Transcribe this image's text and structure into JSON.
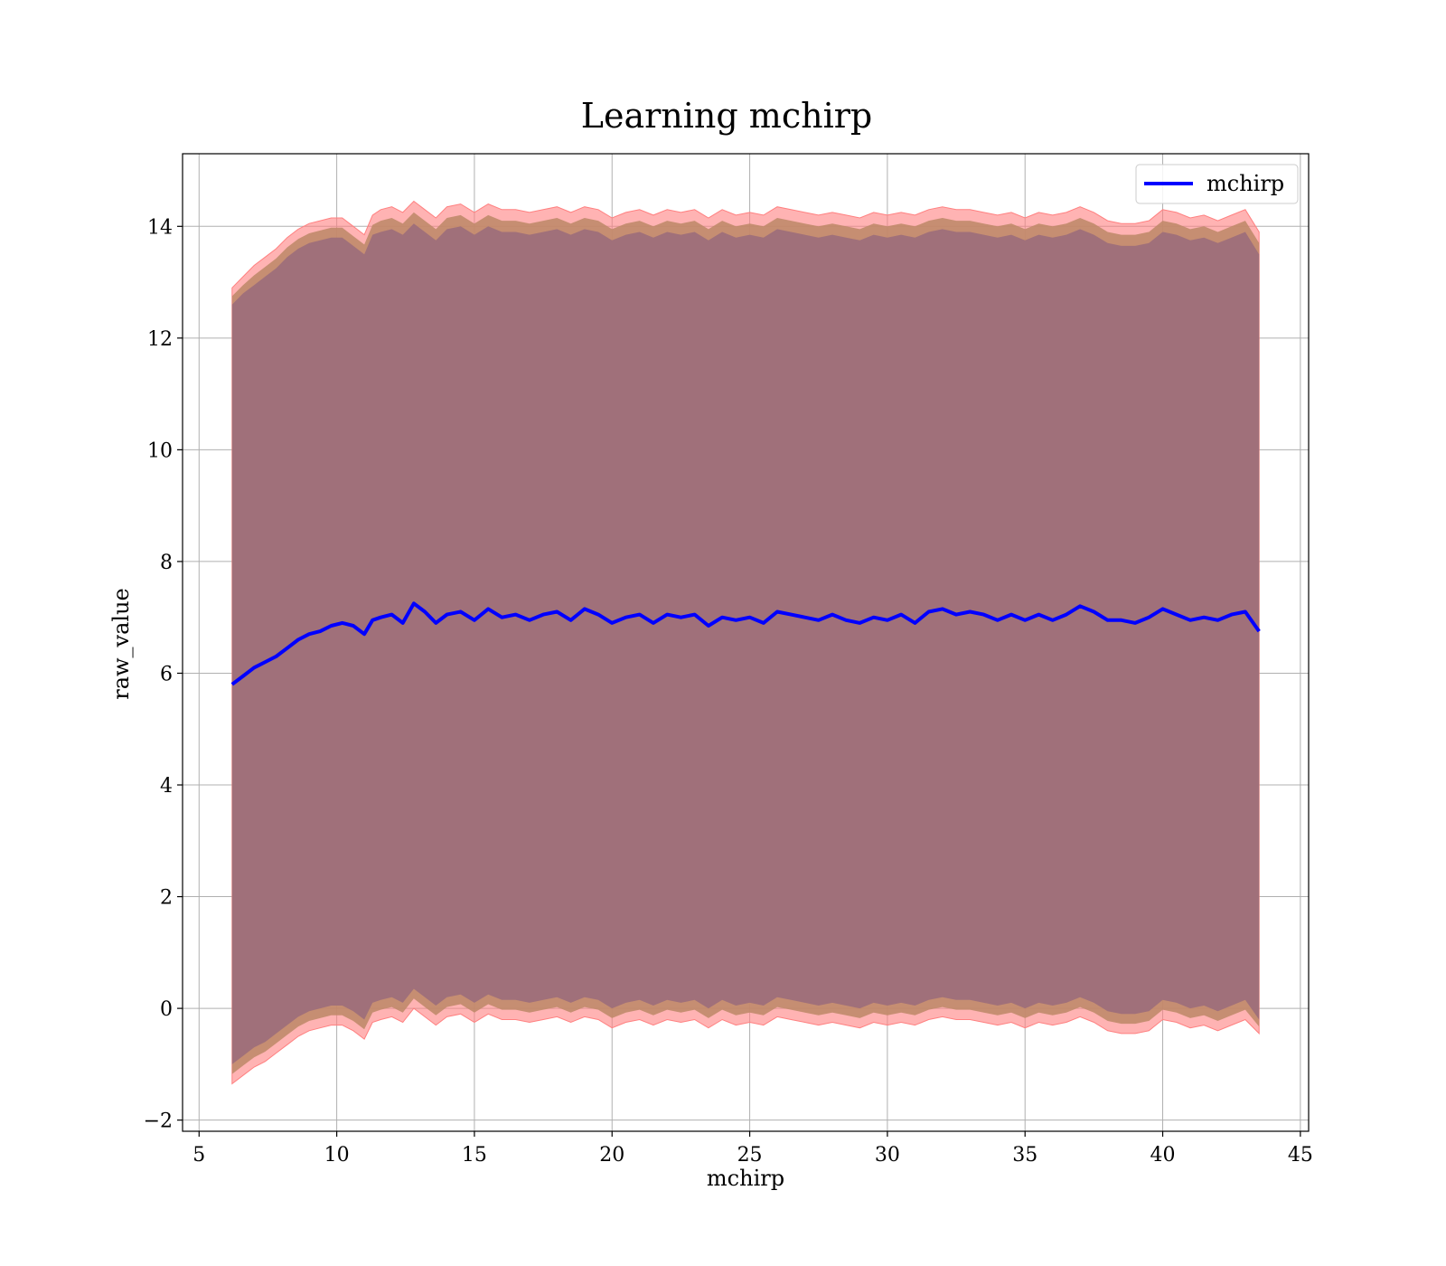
{
  "chart_data": {
    "type": "area",
    "title": "Learning mchirp",
    "xlabel": "mchirp",
    "ylabel": "raw_value",
    "xlim": [
      4.4,
      45.3
    ],
    "ylim": [
      -2.2,
      15.3
    ],
    "xticks": [
      5,
      10,
      15,
      20,
      25,
      30,
      35,
      40,
      45
    ],
    "yticks": [
      -2,
      0,
      2,
      4,
      6,
      8,
      10,
      12,
      14
    ],
    "xtick_labels": [
      "5",
      "10",
      "15",
      "20",
      "25",
      "30",
      "35",
      "40",
      "45"
    ],
    "ytick_labels": [
      "−2",
      "0",
      "2",
      "4",
      "6",
      "8",
      "10",
      "12",
      "14"
    ],
    "grid": true,
    "legend_position": "top-right",
    "colors": {
      "line": "#0000ff",
      "outer_band": "#ff8080",
      "middle_band": "#c08a6a",
      "inner_band": "#a0707a"
    },
    "series": [
      {
        "name": "mchirp",
        "x": [
          6.2,
          6.6,
          7.0,
          7.4,
          7.8,
          8.2,
          8.6,
          9.0,
          9.4,
          9.8,
          10.2,
          10.6,
          11.0,
          11.3,
          11.6,
          12.0,
          12.4,
          12.8,
          13.2,
          13.6,
          14.0,
          14.5,
          15.0,
          15.5,
          16.0,
          16.5,
          17.0,
          17.5,
          18.0,
          18.5,
          19.0,
          19.5,
          20.0,
          20.5,
          21.0,
          21.5,
          22.0,
          22.5,
          23.0,
          23.5,
          24.0,
          24.5,
          25.0,
          25.5,
          26.0,
          26.5,
          27.0,
          27.5,
          28.0,
          28.5,
          29.0,
          29.5,
          30.0,
          30.5,
          31.0,
          31.5,
          32.0,
          32.5,
          33.0,
          33.5,
          34.0,
          34.5,
          35.0,
          35.5,
          36.0,
          36.5,
          37.0,
          37.5,
          38.0,
          38.5,
          39.0,
          39.5,
          40.0,
          40.5,
          41.0,
          41.5,
          42.0,
          42.5,
          43.0,
          43.5
        ],
        "values": [
          5.8,
          5.95,
          6.1,
          6.2,
          6.3,
          6.45,
          6.6,
          6.7,
          6.75,
          6.85,
          6.9,
          6.85,
          6.7,
          6.95,
          7.0,
          7.05,
          6.9,
          7.25,
          7.1,
          6.9,
          7.05,
          7.1,
          6.95,
          7.15,
          7.0,
          7.05,
          6.95,
          7.05,
          7.1,
          6.95,
          7.15,
          7.05,
          6.9,
          7.0,
          7.05,
          6.9,
          7.05,
          7.0,
          7.05,
          6.85,
          7.0,
          6.95,
          7.0,
          6.9,
          7.1,
          7.05,
          7.0,
          6.95,
          7.05,
          6.95,
          6.9,
          7.0,
          6.95,
          7.05,
          6.9,
          7.1,
          7.15,
          7.05,
          7.1,
          7.05,
          6.95,
          7.05,
          6.95,
          7.05,
          6.95,
          7.05,
          7.2,
          7.1,
          6.95,
          6.95,
          6.9,
          7.0,
          7.15,
          7.05,
          6.95,
          7.0,
          6.95,
          7.05,
          7.1,
          6.75
        ],
        "band_outer_upper": [
          12.9,
          13.1,
          13.3,
          13.45,
          13.6,
          13.8,
          13.95,
          14.05,
          14.1,
          14.15,
          14.15,
          14.0,
          13.85,
          14.2,
          14.3,
          14.35,
          14.25,
          14.45,
          14.3,
          14.15,
          14.35,
          14.4,
          14.25,
          14.4,
          14.3,
          14.3,
          14.25,
          14.3,
          14.35,
          14.25,
          14.35,
          14.3,
          14.15,
          14.25,
          14.3,
          14.2,
          14.3,
          14.25,
          14.3,
          14.15,
          14.3,
          14.2,
          14.25,
          14.2,
          14.35,
          14.3,
          14.25,
          14.2,
          14.25,
          14.2,
          14.15,
          14.25,
          14.2,
          14.25,
          14.2,
          14.3,
          14.35,
          14.3,
          14.3,
          14.25,
          14.2,
          14.25,
          14.15,
          14.25,
          14.2,
          14.25,
          14.35,
          14.25,
          14.1,
          14.05,
          14.05,
          14.1,
          14.3,
          14.25,
          14.15,
          14.2,
          14.1,
          14.2,
          14.3,
          13.9
        ],
        "band_inner_upper": [
          12.6,
          12.8,
          12.95,
          13.1,
          13.25,
          13.45,
          13.6,
          13.7,
          13.75,
          13.8,
          13.8,
          13.65,
          13.5,
          13.85,
          13.9,
          13.95,
          13.85,
          14.05,
          13.9,
          13.75,
          13.95,
          14.0,
          13.85,
          14.0,
          13.9,
          13.9,
          13.85,
          13.9,
          13.95,
          13.85,
          13.95,
          13.9,
          13.75,
          13.85,
          13.9,
          13.8,
          13.9,
          13.85,
          13.9,
          13.75,
          13.9,
          13.8,
          13.85,
          13.8,
          13.95,
          13.9,
          13.85,
          13.8,
          13.85,
          13.8,
          13.75,
          13.85,
          13.8,
          13.85,
          13.8,
          13.9,
          13.95,
          13.9,
          13.9,
          13.85,
          13.8,
          13.85,
          13.75,
          13.85,
          13.8,
          13.85,
          13.95,
          13.85,
          13.7,
          13.65,
          13.65,
          13.7,
          13.9,
          13.85,
          13.75,
          13.8,
          13.7,
          13.8,
          13.9,
          13.5
        ],
        "band_inner_lower": [
          -1.0,
          -0.85,
          -0.7,
          -0.6,
          -0.45,
          -0.3,
          -0.15,
          -0.05,
          0.0,
          0.05,
          0.05,
          -0.05,
          -0.2,
          0.1,
          0.15,
          0.2,
          0.1,
          0.35,
          0.2,
          0.05,
          0.2,
          0.25,
          0.1,
          0.25,
          0.15,
          0.15,
          0.1,
          0.15,
          0.2,
          0.1,
          0.2,
          0.15,
          0.0,
          0.1,
          0.15,
          0.05,
          0.15,
          0.1,
          0.15,
          0.0,
          0.15,
          0.05,
          0.1,
          0.05,
          0.2,
          0.15,
          0.1,
          0.05,
          0.1,
          0.05,
          0.0,
          0.1,
          0.05,
          0.1,
          0.05,
          0.15,
          0.2,
          0.15,
          0.15,
          0.1,
          0.05,
          0.1,
          0.0,
          0.1,
          0.05,
          0.1,
          0.2,
          0.1,
          -0.05,
          -0.1,
          -0.1,
          -0.05,
          0.15,
          0.1,
          0.0,
          0.05,
          -0.05,
          0.05,
          0.15,
          -0.2
        ],
        "band_outer_lower": [
          -1.35,
          -1.2,
          -1.05,
          -0.95,
          -0.8,
          -0.65,
          -0.5,
          -0.4,
          -0.35,
          -0.3,
          -0.3,
          -0.4,
          -0.55,
          -0.25,
          -0.2,
          -0.15,
          -0.25,
          0.0,
          -0.15,
          -0.3,
          -0.15,
          -0.1,
          -0.25,
          -0.1,
          -0.2,
          -0.2,
          -0.25,
          -0.2,
          -0.15,
          -0.25,
          -0.15,
          -0.2,
          -0.35,
          -0.25,
          -0.2,
          -0.3,
          -0.2,
          -0.25,
          -0.2,
          -0.35,
          -0.2,
          -0.3,
          -0.25,
          -0.3,
          -0.15,
          -0.2,
          -0.25,
          -0.3,
          -0.25,
          -0.3,
          -0.35,
          -0.25,
          -0.3,
          -0.25,
          -0.3,
          -0.2,
          -0.15,
          -0.2,
          -0.2,
          -0.25,
          -0.3,
          -0.25,
          -0.35,
          -0.25,
          -0.3,
          -0.25,
          -0.15,
          -0.25,
          -0.4,
          -0.45,
          -0.45,
          -0.4,
          -0.2,
          -0.25,
          -0.35,
          -0.3,
          -0.4,
          -0.3,
          -0.2,
          -0.45
        ]
      }
    ]
  }
}
